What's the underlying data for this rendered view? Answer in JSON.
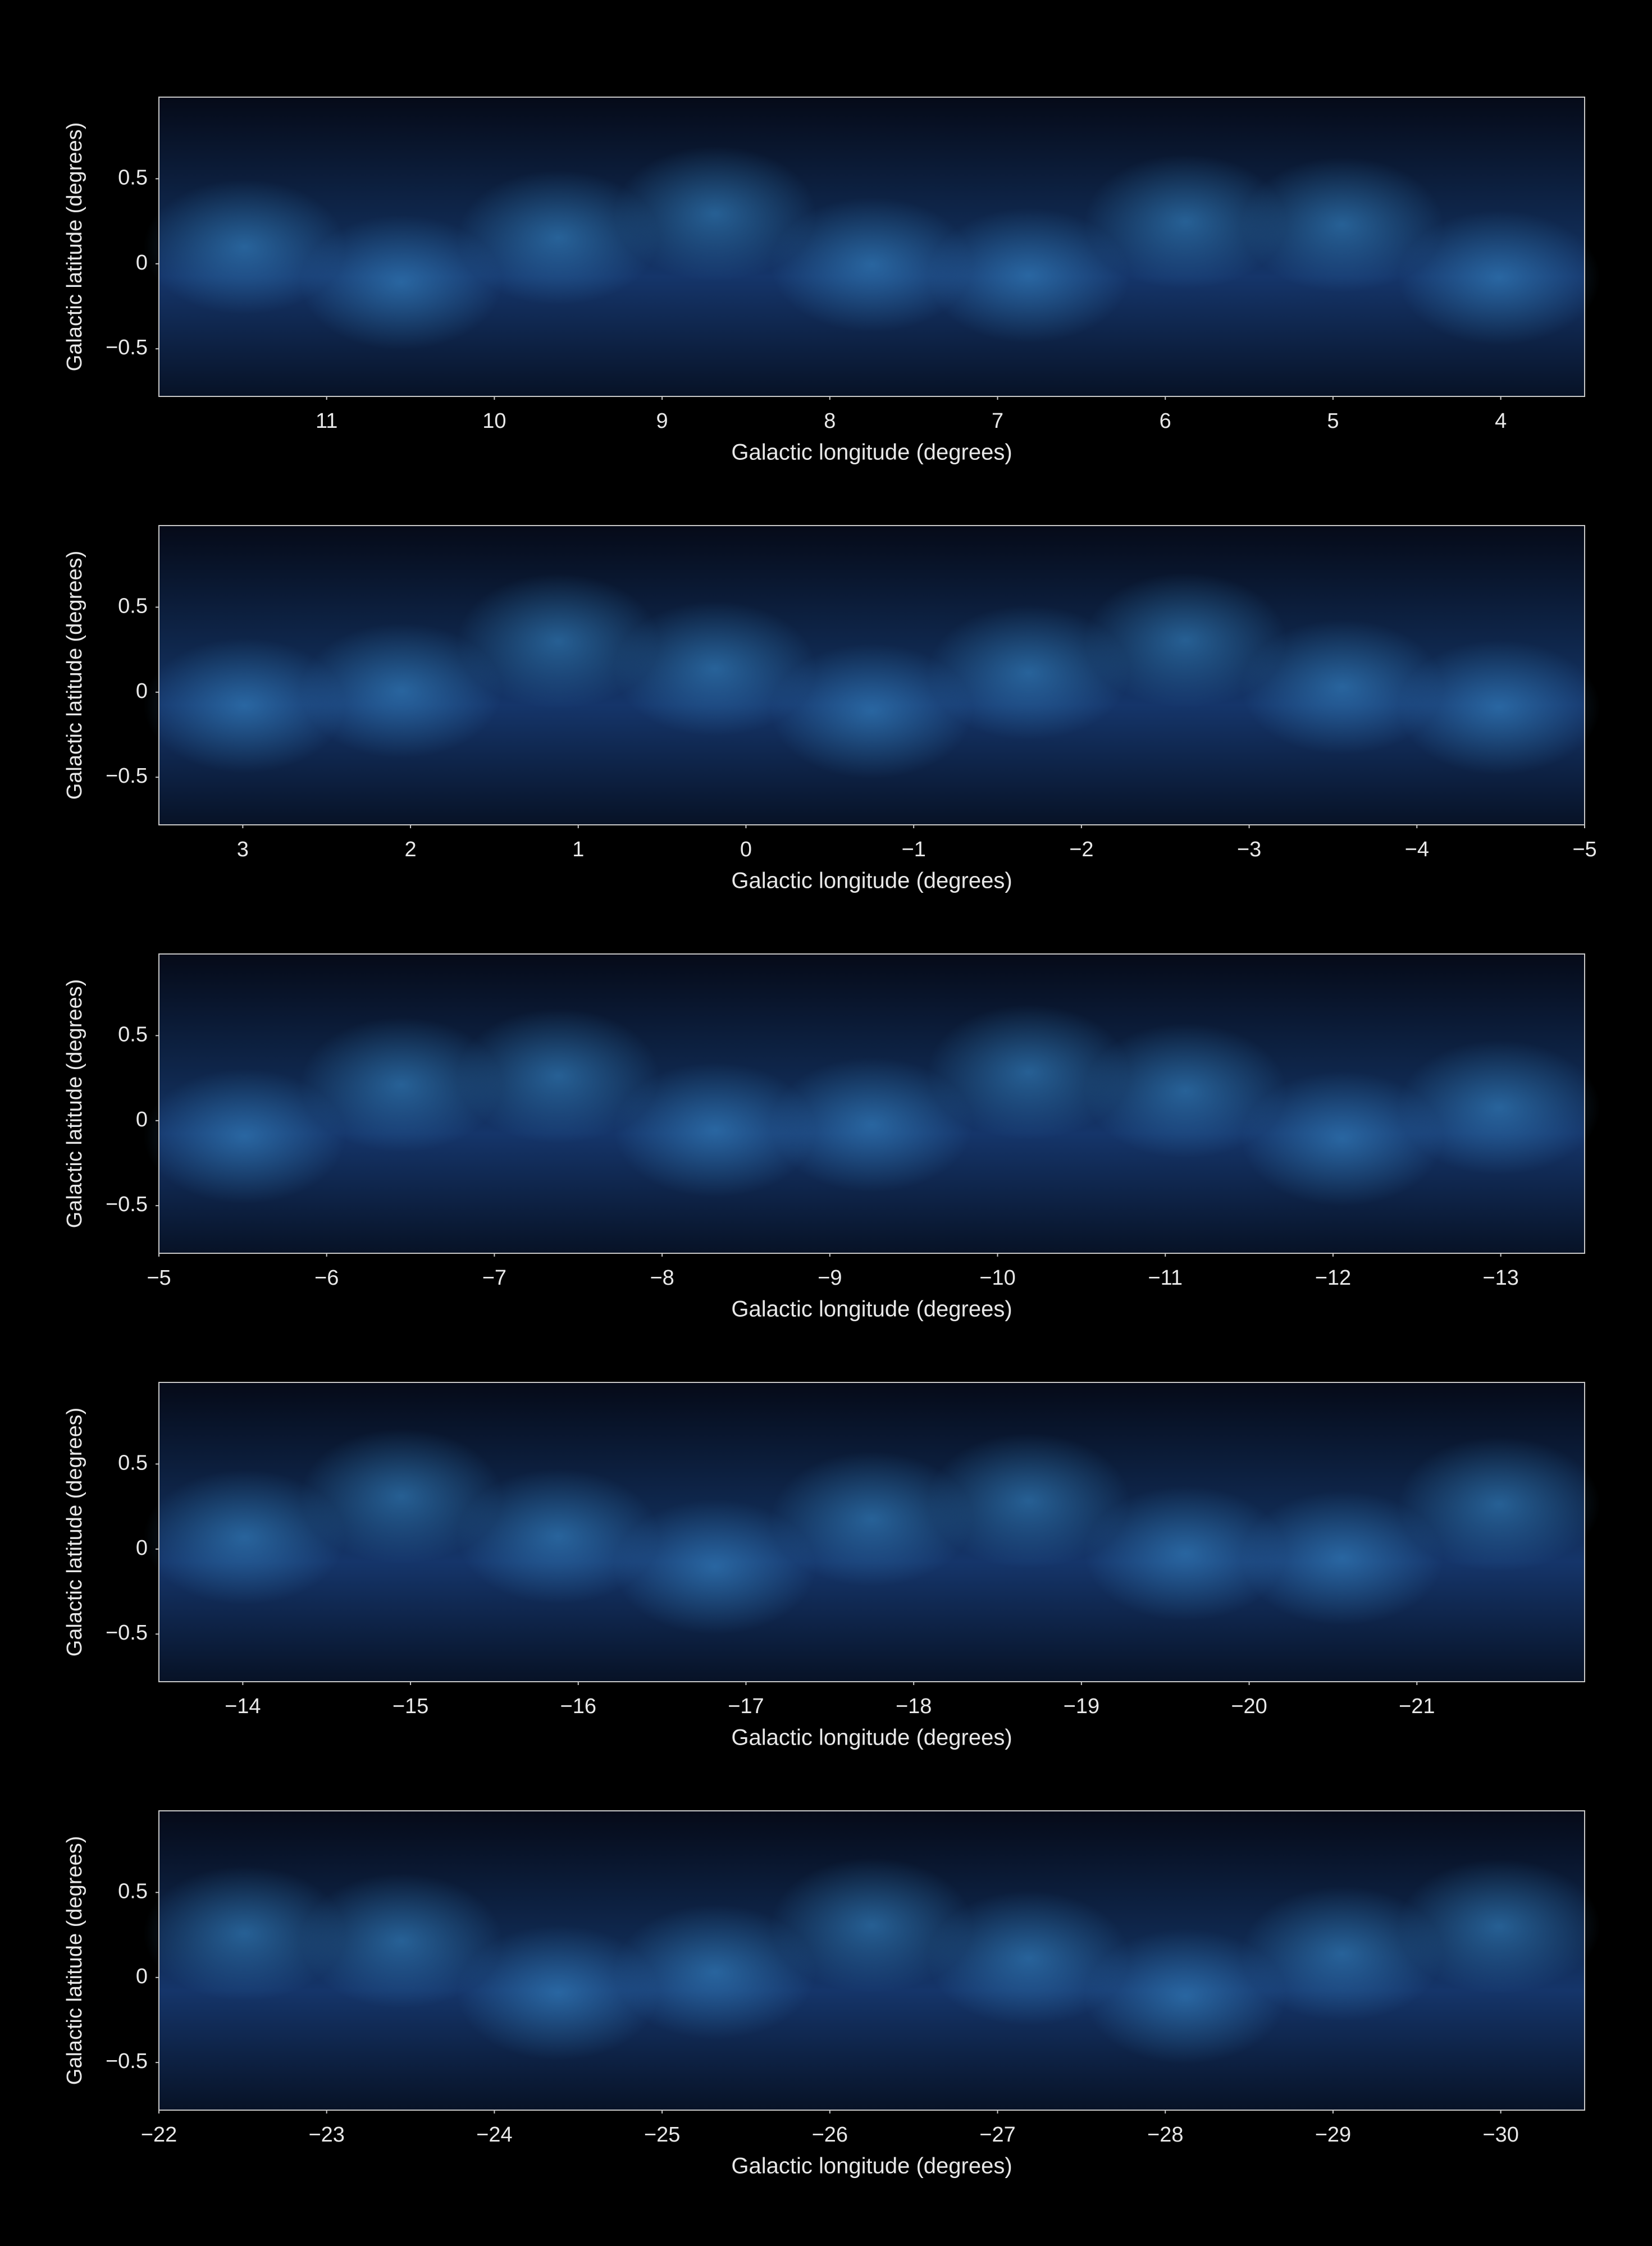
{
  "chart_data": [
    {
      "type": "image",
      "x_label": "Galactic longitude (degrees)",
      "y_label": "Galactic latitude (degrees)",
      "xlim": [
        12,
        3.5
      ],
      "ylim": [
        -0.78,
        0.98
      ],
      "xticks": [
        11,
        10,
        9,
        8,
        7,
        6,
        5,
        4
      ],
      "yticks": [
        0.5,
        0,
        {
          "value": -0.5,
          "label": "−0.5"
        }
      ]
    },
    {
      "type": "image",
      "x_label": "Galactic longitude (degrees)",
      "y_label": "Galactic latitude (degrees)",
      "xlim": [
        3.5,
        -5
      ],
      "ylim": [
        -0.78,
        0.98
      ],
      "xticks": [
        3,
        2,
        1,
        0,
        {
          "value": -1,
          "label": "−1"
        },
        {
          "value": -2,
          "label": "−2"
        },
        {
          "value": -3,
          "label": "−3"
        },
        {
          "value": -4,
          "label": "−4"
        },
        {
          "value": -5,
          "label": "−5"
        }
      ],
      "yticks": [
        0.5,
        0,
        {
          "value": -0.5,
          "label": "−0.5"
        }
      ]
    },
    {
      "type": "image",
      "x_label": "Galactic longitude (degrees)",
      "y_label": "Galactic latitude (degrees)",
      "xlim": [
        -5,
        -13.5
      ],
      "ylim": [
        -0.78,
        0.98
      ],
      "xticks": [
        {
          "value": -5,
          "label": "−5"
        },
        {
          "value": -6,
          "label": "−6"
        },
        {
          "value": -7,
          "label": "−7"
        },
        {
          "value": -8,
          "label": "−8"
        },
        {
          "value": -9,
          "label": "−9"
        },
        {
          "value": -10,
          "label": "−10"
        },
        {
          "value": -11,
          "label": "−11"
        },
        {
          "value": -12,
          "label": "−12"
        },
        {
          "value": -13,
          "label": "−13"
        }
      ],
      "yticks": [
        0.5,
        0,
        {
          "value": -0.5,
          "label": "−0.5"
        }
      ]
    },
    {
      "type": "image",
      "x_label": "Galactic longitude (degrees)",
      "y_label": "Galactic latitude (degrees)",
      "xlim": [
        -13.5,
        -22
      ],
      "ylim": [
        -0.78,
        0.98
      ],
      "xticks": [
        {
          "value": -14,
          "label": "−14"
        },
        {
          "value": -15,
          "label": "−15"
        },
        {
          "value": -16,
          "label": "−16"
        },
        {
          "value": -17,
          "label": "−17"
        },
        {
          "value": -18,
          "label": "−18"
        },
        {
          "value": -19,
          "label": "−19"
        },
        {
          "value": -20,
          "label": "−20"
        },
        {
          "value": -21,
          "label": "−21"
        }
      ],
      "yticks": [
        0.5,
        0,
        {
          "value": -0.5,
          "label": "−0.5"
        }
      ]
    },
    {
      "type": "image",
      "x_label": "Galactic longitude (degrees)",
      "y_label": "Galactic latitude (degrees)",
      "xlim": [
        -22,
        -30.5
      ],
      "ylim": [
        -0.78,
        0.98
      ],
      "xticks": [
        {
          "value": -22,
          "label": "−22"
        },
        {
          "value": -23,
          "label": "−23"
        },
        {
          "value": -24,
          "label": "−24"
        },
        {
          "value": -25,
          "label": "−25"
        },
        {
          "value": -26,
          "label": "−26"
        },
        {
          "value": -27,
          "label": "−27"
        },
        {
          "value": -28,
          "label": "−28"
        },
        {
          "value": -29,
          "label": "−29"
        },
        {
          "value": -30,
          "label": "−30"
        }
      ],
      "yticks": [
        0.5,
        0,
        {
          "value": -0.5,
          "label": "−0.5"
        }
      ]
    }
  ]
}
